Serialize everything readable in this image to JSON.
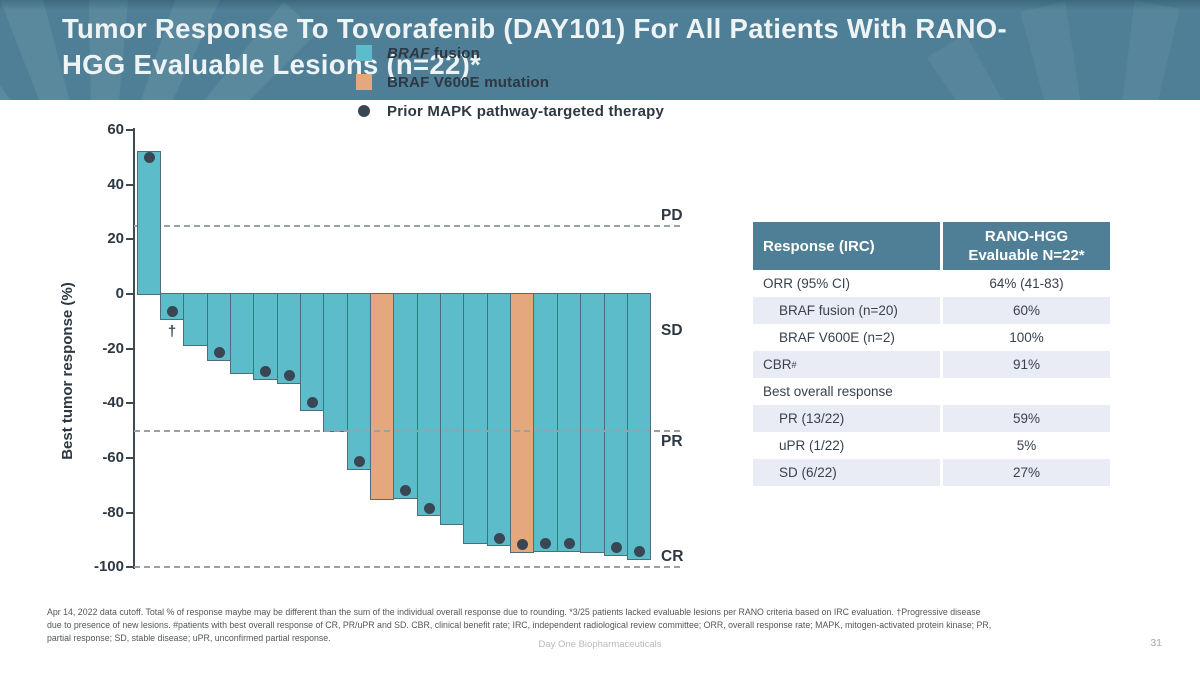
{
  "slide": {
    "title_lines": [
      "Tumor Response To Tovorafenib (DAY101) For All Patients With RANO-",
      "HGG Evaluable Lesions (n=22)*"
    ],
    "footer_brand": "Day One Biopharmaceuticals",
    "page_number": "31",
    "footnote_lines": [
      "Apr 14, 2022 data cutoff. Total % of response maybe may be different than the sum of the individual overall response due to rounding. *3/25 patients lacked evaluable lesions per RANO criteria based on IRC evaluation. †Progressive disease",
      "due to presence of new lesions. #patients with best overall response of CR, PR/uPR and SD. CBR, clinical benefit rate; IRC, independent radiological review committee; ORR, overall response rate; MAPK, mitogen-activated protein kinase; PR,",
      "partial response; SD, stable disease; uPR, unconfirmed partial response."
    ]
  },
  "colors": {
    "header_teal": "#4e7f96",
    "teal_bar": "#5cbcca",
    "orange_bar": "#e5a77e",
    "bar_border": "#4d6d79",
    "dot": "#3a4653",
    "dashed_line": "#99a0a6",
    "table_alt_row": "#e9ebf5",
    "text_dark": "#2d3843"
  },
  "chart_data": {
    "type": "bar",
    "subtype": "waterfall",
    "title": "",
    "xlabel": "",
    "ylabel": "Best tumor response (%)",
    "ylim": [
      -100,
      60
    ],
    "yticks": [
      60,
      40,
      20,
      0,
      -20,
      -40,
      -60,
      -80,
      -100
    ],
    "grid": false,
    "threshold_lines": [
      {
        "label": "PD",
        "value": 25
      },
      {
        "label": "PR",
        "value": -50
      },
      {
        "label": "CR",
        "value": -100
      }
    ],
    "zone_labels": [
      {
        "label": "PD",
        "y_value": 28.5
      },
      {
        "label": "SD",
        "y_value": -13.7
      },
      {
        "label": "PR",
        "y_value": -54.3
      },
      {
        "label": "CR",
        "y_value": -96.3
      }
    ],
    "legend": [
      {
        "swatch": "square",
        "color_key": "teal_bar",
        "italic": "BRAF",
        "text": " fusion"
      },
      {
        "swatch": "square",
        "color_key": "orange_bar",
        "italic": "",
        "text": "BRAF V600E mutation"
      },
      {
        "swatch": "dot",
        "color_key": "dot",
        "italic": "",
        "text": "Prior MAPK pathway-targeted therapy"
      }
    ],
    "bars": [
      {
        "response": 52.5,
        "mutation": "fusion",
        "prior_mapk": true
      },
      {
        "response": -9,
        "mutation": "fusion",
        "prior_mapk": true,
        "annotation": "†"
      },
      {
        "response": -18.5,
        "mutation": "fusion",
        "prior_mapk": false
      },
      {
        "response": -24,
        "mutation": "fusion",
        "prior_mapk": true
      },
      {
        "response": -29,
        "mutation": "fusion",
        "prior_mapk": false
      },
      {
        "response": -31,
        "mutation": "fusion",
        "prior_mapk": true
      },
      {
        "response": -32.5,
        "mutation": "fusion",
        "prior_mapk": true
      },
      {
        "response": -42.5,
        "mutation": "fusion",
        "prior_mapk": true
      },
      {
        "response": -50,
        "mutation": "fusion",
        "prior_mapk": false
      },
      {
        "response": -64,
        "mutation": "fusion",
        "prior_mapk": true
      },
      {
        "response": -75,
        "mutation": "v600e",
        "prior_mapk": false
      },
      {
        "response": -74.5,
        "mutation": "fusion",
        "prior_mapk": true
      },
      {
        "response": -81,
        "mutation": "fusion",
        "prior_mapk": true
      },
      {
        "response": -84,
        "mutation": "fusion",
        "prior_mapk": false
      },
      {
        "response": -91,
        "mutation": "fusion",
        "prior_mapk": false
      },
      {
        "response": -92,
        "mutation": "fusion",
        "prior_mapk": true
      },
      {
        "response": -94.5,
        "mutation": "v600e",
        "prior_mapk": true
      },
      {
        "response": -94,
        "mutation": "fusion",
        "prior_mapk": true
      },
      {
        "response": -94,
        "mutation": "fusion",
        "prior_mapk": true
      },
      {
        "response": -94.5,
        "mutation": "fusion",
        "prior_mapk": false
      },
      {
        "response": -95.5,
        "mutation": "fusion",
        "prior_mapk": true
      },
      {
        "response": -97,
        "mutation": "fusion",
        "prior_mapk": true
      }
    ]
  },
  "table": {
    "header": {
      "col1": "Response (IRC)",
      "col2_lines": [
        "RANO-HGG",
        "Evaluable N=22*"
      ]
    },
    "rows": [
      {
        "label": "ORR (95% CI)",
        "value": "64% (41-83)",
        "indent": false,
        "shaded": false
      },
      {
        "label": "BRAF fusion (n=20)",
        "value": "60%",
        "indent": true,
        "shaded": true
      },
      {
        "label": "BRAF V600E (n=2)",
        "value": "100%",
        "indent": true,
        "shaded": false
      },
      {
        "label": "CBR",
        "sup": "#",
        "value": "91%",
        "indent": false,
        "shaded": true
      },
      {
        "label": "Best overall response",
        "value": "",
        "indent": false,
        "shaded": false
      },
      {
        "label": "PR (13/22)",
        "value": "59%",
        "indent": true,
        "shaded": true
      },
      {
        "label": "uPR (1/22)",
        "value": "5%",
        "indent": true,
        "shaded": false
      },
      {
        "label": "SD (6/22)",
        "value": "27%",
        "indent": true,
        "shaded": true
      }
    ]
  }
}
